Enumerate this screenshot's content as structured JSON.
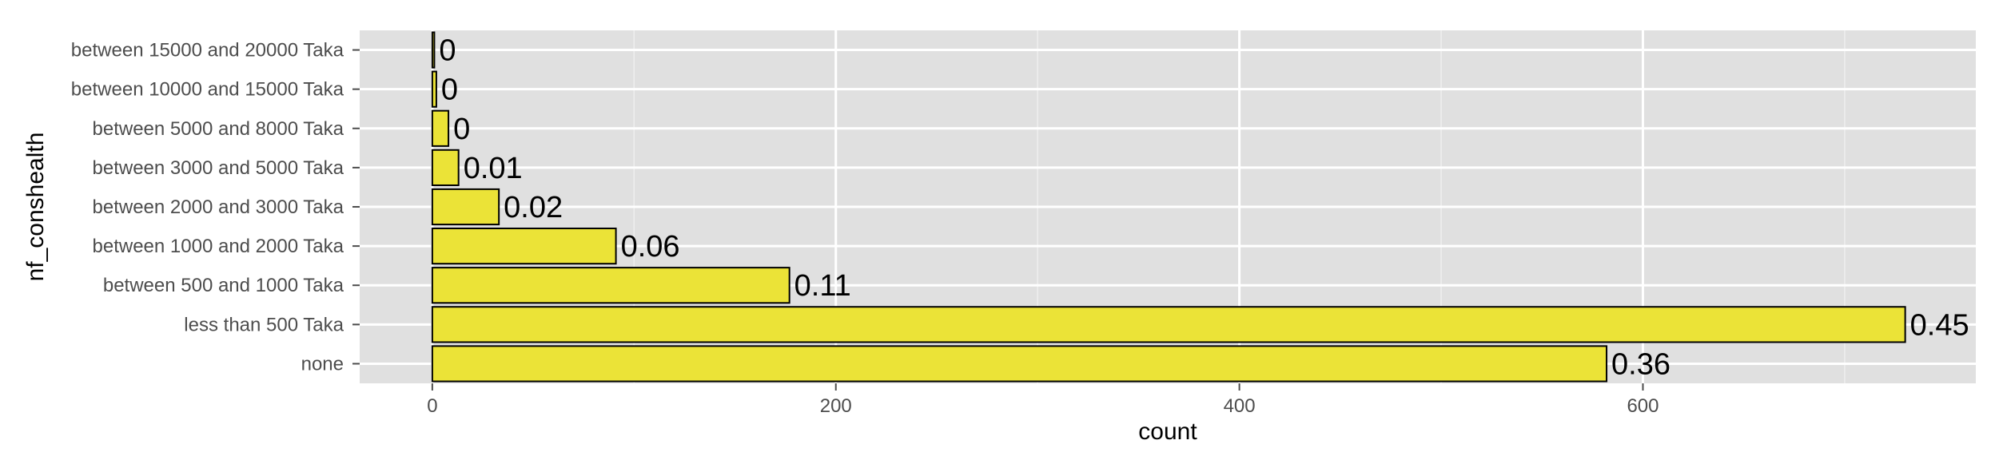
{
  "chart_data": {
    "type": "bar",
    "orientation": "horizontal",
    "categories": [
      "none",
      "less than 500 Taka",
      "between 500 and 1000 Taka",
      "between 1000 and 2000 Taka",
      "between 2000 and 3000 Taka",
      "between 3000 and 5000 Taka",
      "between 5000 and 8000 Taka",
      "between 10000 and 15000 Taka",
      "between 15000 and 20000 Taka"
    ],
    "values": [
      582,
      730,
      177,
      91,
      33,
      13,
      8,
      2,
      1
    ],
    "data_labels": [
      "0.36",
      "0.45",
      "0.11",
      "0.06",
      "0.02",
      "0.01",
      "0",
      "0",
      "0"
    ],
    "xlabel": "count",
    "ylabel": "nf_conshealth",
    "xlim": [
      -36,
      765
    ],
    "xticks": [
      0,
      200,
      400,
      600
    ],
    "grid": true,
    "colors": {
      "bar_fill": "#ebe337",
      "bar_stroke": "#000000",
      "panel_background": "#e0e0e0",
      "grid_major": "#ffffff",
      "grid_minor": "#efefef"
    }
  }
}
